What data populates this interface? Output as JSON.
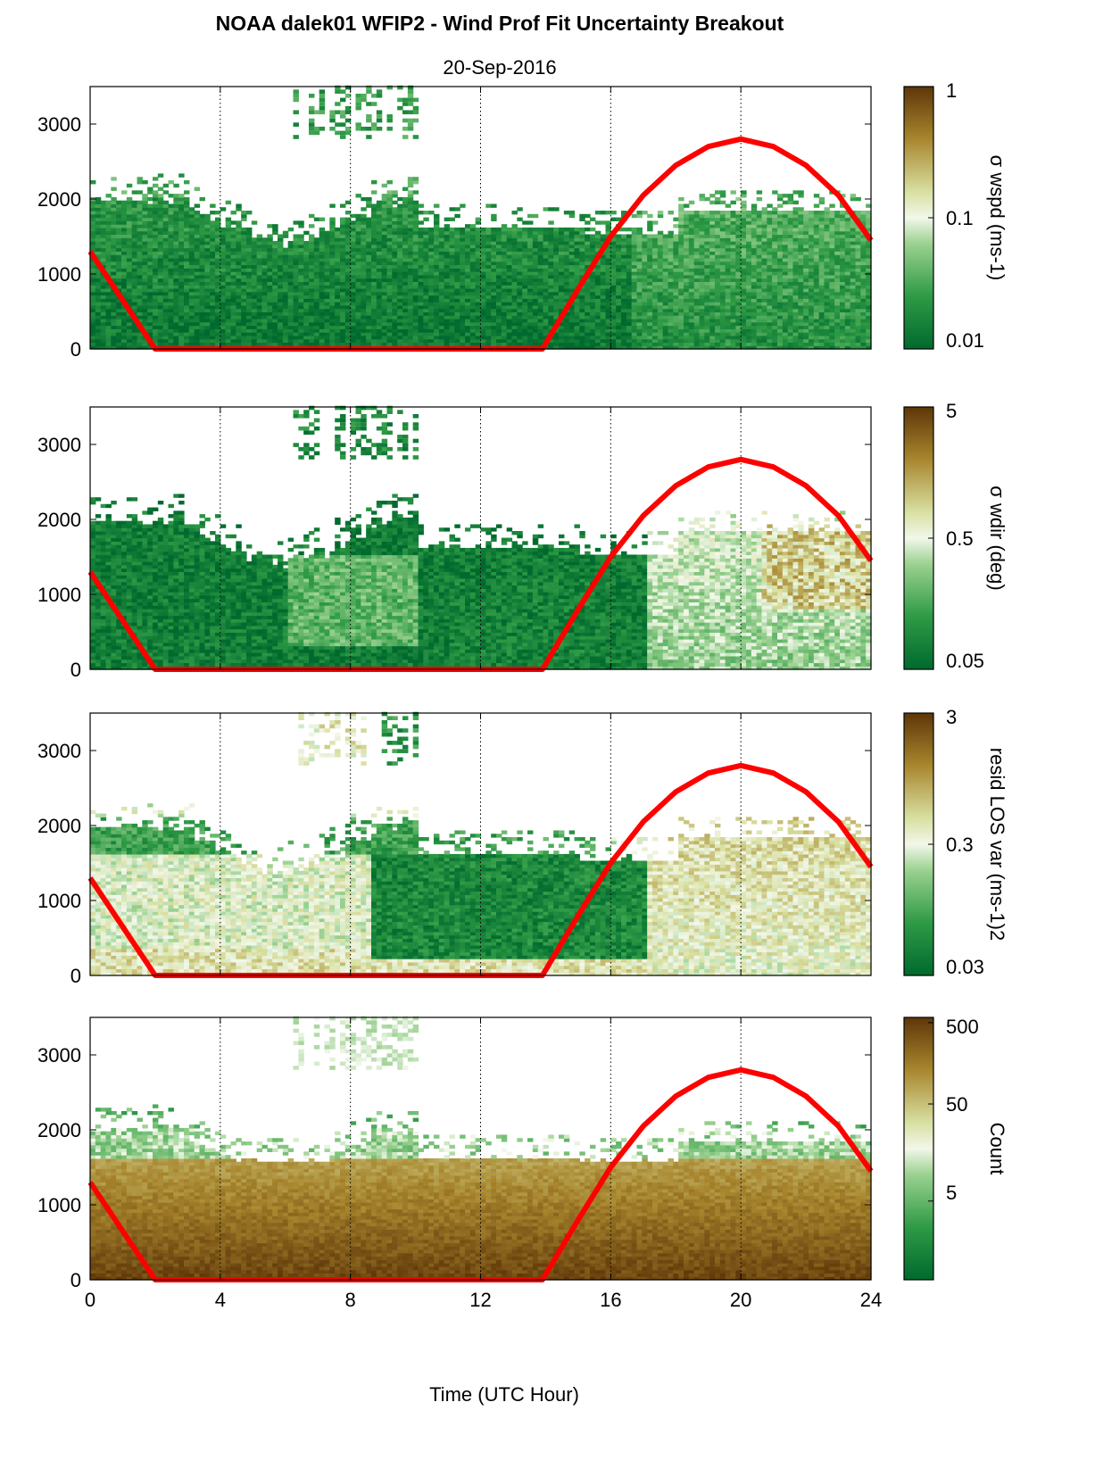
{
  "figure": {
    "title": "NOAA dalek01 WFIP2 - Wind Prof Fit Uncertainty Breakout",
    "subtitle": "20-Sep-2016",
    "xlabel": "Time (UTC Hour)",
    "colors": {
      "sun_curve": "#ff0000",
      "low": "#006a2e",
      "mid": "#f2f7ea",
      "high": "#5e3608"
    }
  },
  "chart_data": [
    {
      "type": "heatmap",
      "x_range": [
        0,
        24
      ],
      "y_range": [
        0,
        3500
      ],
      "x_ticks": [
        "0",
        "4",
        "8",
        "12",
        "16",
        "20",
        "24"
      ],
      "y_ticks": [
        "0",
        "1000",
        "2000",
        "3000"
      ],
      "grid": "vertical dotted lines at x = 4, 8, 12, 16, 20",
      "series": [
        {
          "type": "line",
          "x": [
            0,
            1,
            2,
            13.9,
            15,
            16,
            17,
            18,
            19,
            20,
            21,
            22,
            23,
            24
          ],
          "y": [
            1300,
            650,
            0,
            0,
            800,
            1500,
            2050,
            2450,
            2700,
            2800,
            2700,
            2450,
            2050,
            1450
          ]
        }
      ],
      "colorbar": {
        "label": "σ wspd (ms-1)",
        "ticks": [
          "1",
          "0.1",
          "0.01"
        ],
        "scale": "log"
      }
    },
    {
      "type": "heatmap",
      "x_range": [
        0,
        24
      ],
      "y_range": [
        0,
        3500
      ],
      "x_ticks": [
        "0",
        "4",
        "8",
        "12",
        "16",
        "20",
        "24"
      ],
      "y_ticks": [
        "0",
        "1000",
        "2000",
        "3000"
      ],
      "grid": "vertical dotted lines at x = 4, 8, 12, 16, 20",
      "series": [
        {
          "type": "line",
          "x": [
            0,
            1,
            2,
            13.9,
            15,
            16,
            17,
            18,
            19,
            20,
            21,
            22,
            23,
            24
          ],
          "y": [
            1300,
            650,
            0,
            0,
            800,
            1500,
            2050,
            2450,
            2700,
            2800,
            2700,
            2450,
            2050,
            1450
          ]
        }
      ],
      "colorbar": {
        "label": "σ wdir (deg)",
        "ticks": [
          "5",
          "0.5",
          "0.05"
        ],
        "scale": "log"
      }
    },
    {
      "type": "heatmap",
      "x_range": [
        0,
        24
      ],
      "y_range": [
        0,
        3500
      ],
      "x_ticks": [
        "0",
        "4",
        "8",
        "12",
        "16",
        "20",
        "24"
      ],
      "y_ticks": [
        "0",
        "1000",
        "2000",
        "3000"
      ],
      "grid": "vertical dotted lines at x = 4, 8, 12, 16, 20",
      "series": [
        {
          "type": "line",
          "x": [
            0,
            1,
            2,
            13.9,
            15,
            16,
            17,
            18,
            19,
            20,
            21,
            22,
            23,
            24
          ],
          "y": [
            1300,
            650,
            0,
            0,
            800,
            1500,
            2050,
            2450,
            2700,
            2800,
            2700,
            2450,
            2050,
            1450
          ]
        }
      ],
      "colorbar": {
        "label": "resid LOS var (ms-1)2",
        "ticks": [
          "3",
          "0.3",
          "0.03"
        ],
        "scale": "log"
      }
    },
    {
      "type": "heatmap",
      "x_range": [
        0,
        24
      ],
      "y_range": [
        0,
        3500
      ],
      "x_ticks": [
        "0",
        "4",
        "8",
        "12",
        "16",
        "20",
        "24"
      ],
      "y_ticks": [
        "0",
        "1000",
        "2000",
        "3000"
      ],
      "grid": "vertical dotted lines at x = 4, 8, 12, 16, 20",
      "series": [
        {
          "type": "line",
          "x": [
            0,
            1,
            2,
            13.9,
            15,
            16,
            17,
            18,
            19,
            20,
            21,
            22,
            23,
            24
          ],
          "y": [
            1300,
            650,
            0,
            0,
            800,
            1500,
            2050,
            2450,
            2700,
            2800,
            2700,
            2450,
            2050,
            1450
          ]
        }
      ],
      "colorbar": {
        "label": "Count",
        "ticks": [
          "500",
          "50",
          "5"
        ],
        "scale": "log"
      }
    }
  ]
}
